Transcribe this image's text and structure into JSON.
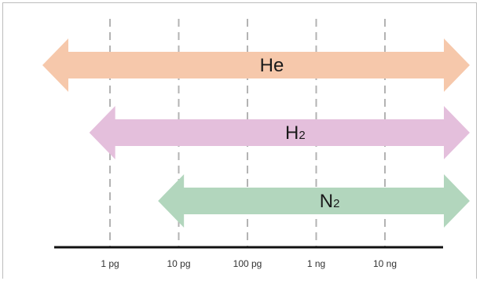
{
  "chart_data": {
    "type": "range",
    "title": "",
    "xlabel": "",
    "ylabel": "",
    "x_scale": "log",
    "ticks": [
      {
        "label": "1 pg",
        "value": 1
      },
      {
        "label": "10 pg",
        "value": 10
      },
      {
        "label": "100 pg",
        "value": 100
      },
      {
        "label": "1 ng",
        "value": 1000
      },
      {
        "label": "10 ng",
        "value": 10000
      }
    ],
    "grid": true,
    "series": [
      {
        "label": "He",
        "base": "He",
        "sub": "",
        "start": 0.05,
        "end": 1000000,
        "color": "#f6c8ab"
      },
      {
        "label": "H2",
        "base": "H",
        "sub": "2",
        "start": 0.5,
        "end": 1000000,
        "color": "#e4bfdc"
      },
      {
        "label": "N2",
        "base": "N",
        "sub": "2",
        "start": 5,
        "end": 1000000,
        "color": "#b2d6bd"
      }
    ]
  }
}
